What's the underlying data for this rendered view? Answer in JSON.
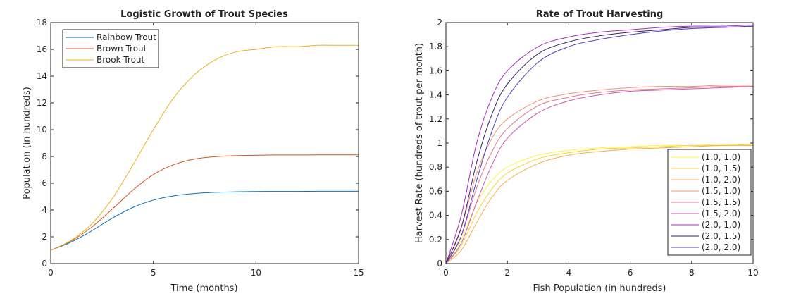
{
  "chart_data": [
    {
      "type": "line",
      "title": "Logistic Growth of Trout Species",
      "xlabel": "Time (months)",
      "ylabel": "Population (in hundreds)",
      "xlim": [
        0,
        15
      ],
      "ylim": [
        0,
        18
      ],
      "xticks": [
        0,
        5,
        10,
        15
      ],
      "yticks": [
        0,
        2,
        4,
        6,
        8,
        10,
        12,
        14,
        16,
        18
      ],
      "grid": false,
      "legend_position": "top-left",
      "series": [
        {
          "name": "Rainbow Trout",
          "color": "#0072BD",
          "x": [
            0,
            1,
            2,
            3,
            4,
            5,
            6,
            7,
            8,
            9,
            10,
            11,
            12,
            13,
            14,
            15
          ],
          "values": [
            1.0,
            1.61,
            2.45,
            3.39,
            4.19,
            4.74,
            5.06,
            5.23,
            5.32,
            5.36,
            5.38,
            5.39,
            5.39,
            5.4,
            5.4,
            5.4
          ]
        },
        {
          "name": "Brown Trout",
          "color": "#D95319",
          "x": [
            0,
            1,
            2,
            3,
            4,
            5,
            6,
            7,
            8,
            9,
            10,
            11,
            12,
            13,
            14,
            15
          ],
          "values": [
            1.0,
            1.69,
            2.73,
            4.07,
            5.48,
            6.65,
            7.39,
            7.8,
            7.98,
            8.06,
            8.09,
            8.11,
            8.11,
            8.12,
            8.12,
            8.12
          ]
        },
        {
          "name": "Brook Trout",
          "color": "#EDB120",
          "x": [
            0,
            1,
            2,
            3,
            4,
            5,
            6,
            7,
            8,
            9,
            10,
            11,
            12,
            13,
            14,
            15
          ],
          "values": [
            1.0,
            1.74,
            2.97,
            4.86,
            7.35,
            10.0,
            12.4,
            14.1,
            15.2,
            15.8,
            16.0,
            16.2,
            16.2,
            16.3,
            16.3,
            16.3
          ]
        }
      ]
    },
    {
      "type": "line",
      "title": "Rate of Trout Harvesting",
      "xlabel": "Fish Population (in hundreds)",
      "ylabel": "Harvest Rate (hundreds of trout per month)",
      "xlim": [
        0,
        10
      ],
      "ylim": [
        0,
        2
      ],
      "xticks": [
        0,
        2,
        4,
        6,
        8,
        10
      ],
      "yticks": [
        0,
        0.2,
        0.4,
        0.6,
        0.8,
        1,
        1.2,
        1.4,
        1.6,
        1.8,
        2
      ],
      "grid": false,
      "legend_position": "bottom-right",
      "x": [
        0,
        0.5,
        1,
        1.5,
        2,
        3,
        4,
        5,
        6,
        7,
        8,
        9,
        10
      ],
      "series": [
        {
          "name": "(1.0, 1.0)",
          "color": "#FDF44A",
          "values": [
            0,
            0.2,
            0.5,
            0.69,
            0.8,
            0.9,
            0.94,
            0.96,
            0.97,
            0.98,
            0.98,
            0.99,
            0.99
          ]
        },
        {
          "name": "(1.0, 1.5)",
          "color": "#F9D22E",
          "values": [
            0,
            0.15,
            0.42,
            0.62,
            0.75,
            0.87,
            0.92,
            0.95,
            0.96,
            0.97,
            0.98,
            0.98,
            0.99
          ]
        },
        {
          "name": "(1.0, 2.0)",
          "color": "#F3AE4B",
          "values": [
            0,
            0.11,
            0.34,
            0.55,
            0.69,
            0.83,
            0.9,
            0.93,
            0.95,
            0.96,
            0.97,
            0.98,
            0.98
          ]
        },
        {
          "name": "(1.5, 1.0)",
          "color": "#EC9370",
          "values": [
            0,
            0.3,
            0.75,
            1.04,
            1.2,
            1.35,
            1.41,
            1.44,
            1.46,
            1.47,
            1.47,
            1.48,
            1.48
          ]
        },
        {
          "name": "(1.5, 1.5)",
          "color": "#E07A94",
          "values": [
            0,
            0.23,
            0.63,
            0.93,
            1.12,
            1.31,
            1.38,
            1.42,
            1.44,
            1.45,
            1.46,
            1.47,
            1.47
          ]
        },
        {
          "name": "(1.5, 2.0)",
          "color": "#C65BB2",
          "values": [
            0,
            0.17,
            0.51,
            0.82,
            1.04,
            1.25,
            1.35,
            1.4,
            1.43,
            1.44,
            1.45,
            1.46,
            1.47
          ]
        },
        {
          "name": "(2.0, 1.0)",
          "color": "#A82CB8",
          "values": [
            0,
            0.4,
            1.0,
            1.38,
            1.6,
            1.8,
            1.88,
            1.92,
            1.94,
            1.96,
            1.97,
            1.97,
            1.98
          ]
        },
        {
          "name": "(2.0, 1.5)",
          "color": "#3E1D66",
          "values": [
            0,
            0.3,
            0.84,
            1.24,
            1.49,
            1.74,
            1.84,
            1.89,
            1.92,
            1.94,
            1.96,
            1.96,
            1.97
          ]
        },
        {
          "name": "(2.0, 2.0)",
          "color": "#4B3FC2",
          "values": [
            0,
            0.23,
            0.69,
            1.1,
            1.38,
            1.67,
            1.8,
            1.86,
            1.9,
            1.93,
            1.95,
            1.96,
            1.97
          ]
        }
      ]
    }
  ]
}
